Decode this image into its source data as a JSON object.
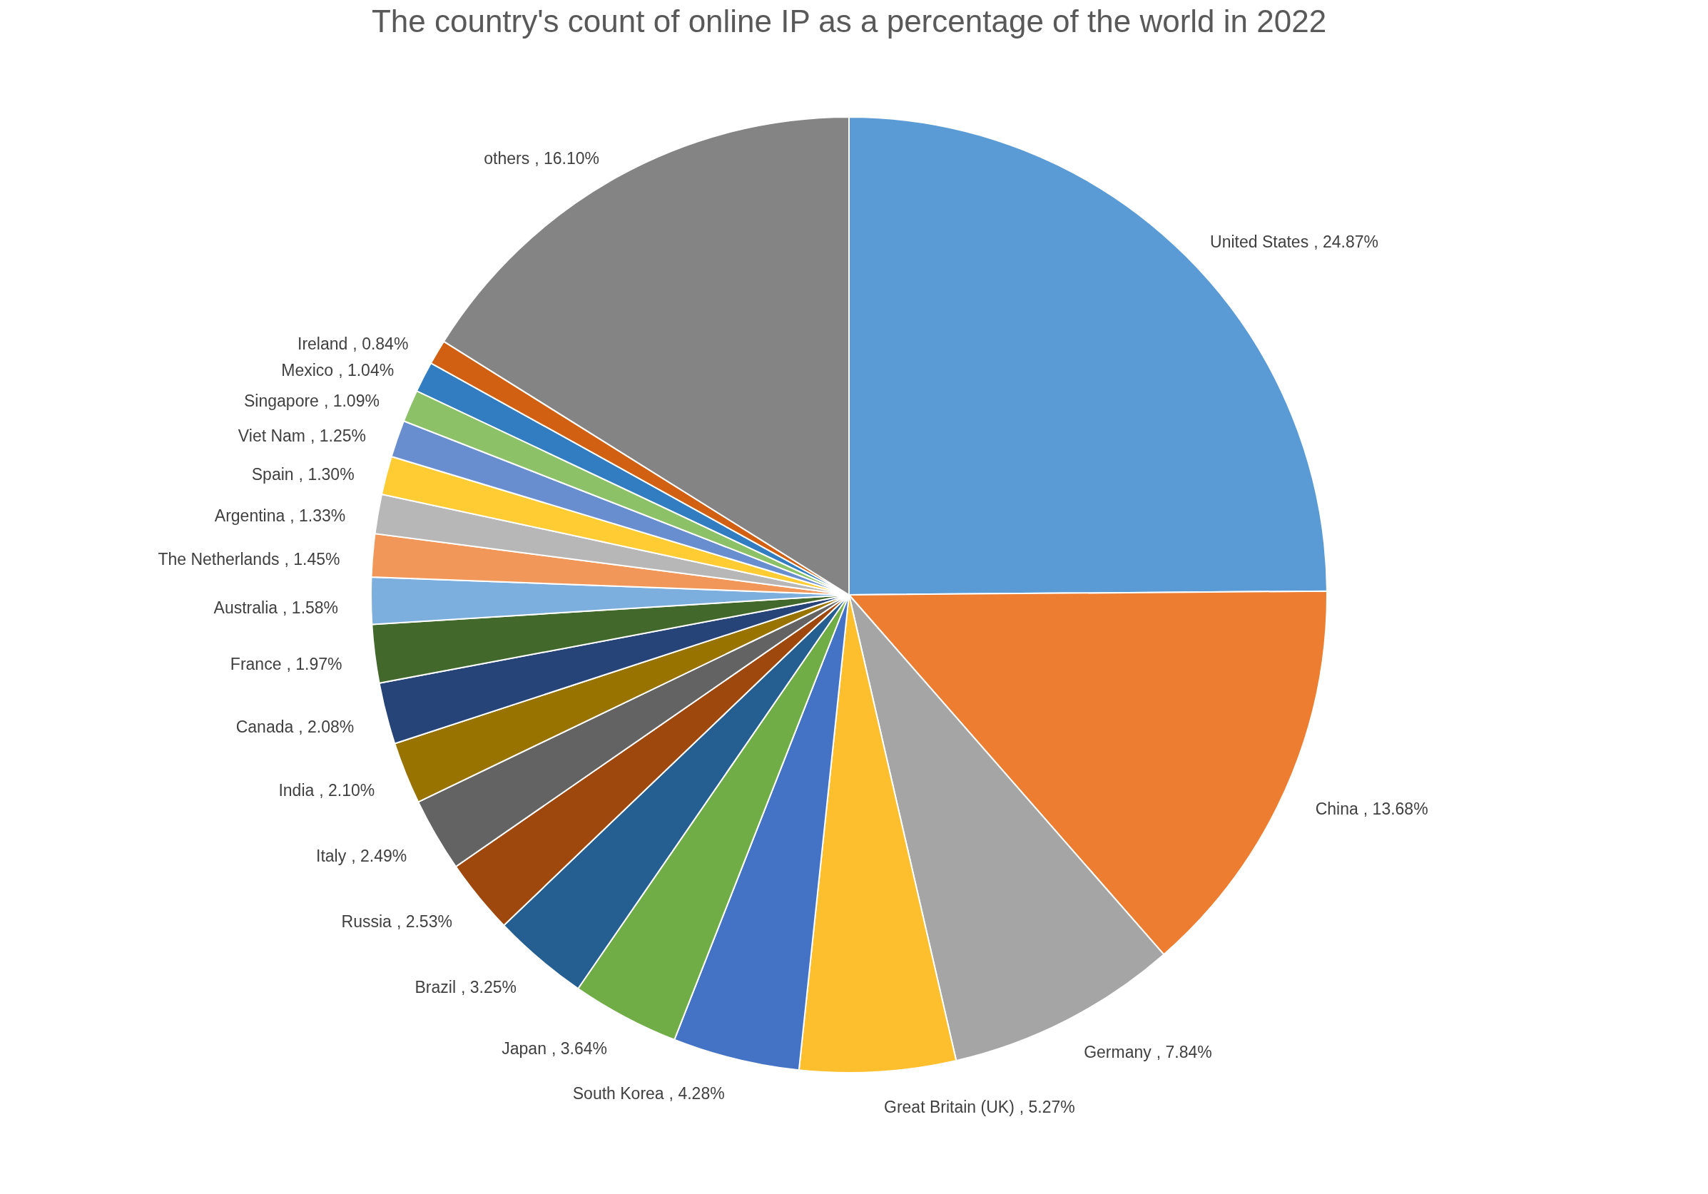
{
  "chart_data": {
    "type": "pie",
    "title": "The country's count of online IP as a percentage of the world in 2022",
    "categories": [
      "United States",
      "China",
      "Germany",
      "Great Britain (UK)",
      "South Korea",
      "Japan",
      "Brazil",
      "Russia",
      "Italy",
      "India",
      "Canada",
      "France",
      "Australia",
      "The Netherlands",
      "Argentina",
      "Spain",
      "Viet Nam",
      "Singapore",
      "Mexico",
      "Ireland",
      "others"
    ],
    "values": [
      24.87,
      13.68,
      7.84,
      5.27,
      4.28,
      3.64,
      3.25,
      2.53,
      2.49,
      2.1,
      2.08,
      1.97,
      1.58,
      1.45,
      1.33,
      1.3,
      1.25,
      1.09,
      1.04,
      0.84,
      16.1
    ],
    "colors": [
      "#5b9bd5",
      "#ed7d31",
      "#a5a5a5",
      "#fdbf2d",
      "#4472c4",
      "#70ad47",
      "#255e91",
      "#9e480e",
      "#636363",
      "#997300",
      "#264478",
      "#43682b",
      "#7cafdd",
      "#f1975a",
      "#b7b7b7",
      "#ffcd33",
      "#698ed0",
      "#8cc168",
      "#327dc2",
      "#d26012",
      "#848484"
    ],
    "value_labels": [
      ", 24.87%",
      ", 13.68%",
      ", 7.84%",
      ", 5.27%",
      ", 4.28%",
      ", 3.64%",
      ", 3.25%",
      ", 2.53%",
      ", 2.49%",
      ", 2.10%",
      ", 2.08%",
      ", 1.97%",
      ", 1.58%",
      ", 1.45%",
      ", 1.33%",
      ", 1.30%",
      ", 1.25%",
      ", 1.09%",
      ", 1.04%",
      ", 0.84%",
      ", 16.10%"
    ],
    "legend": false
  }
}
